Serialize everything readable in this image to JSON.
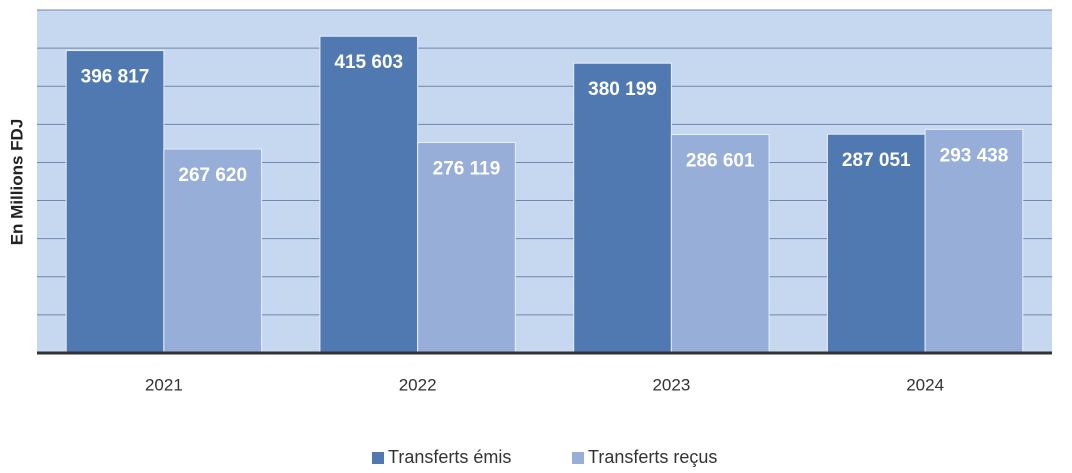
{
  "chart_data": {
    "type": "bar",
    "y_label": "En Millions FDJ",
    "categories": [
      "2021",
      "2022",
      "2023",
      "2024"
    ],
    "series": [
      {
        "name": "Transferts émis",
        "color": "#4f79b0",
        "values": [
          396817,
          415603,
          380199,
          287051
        ],
        "value_labels": [
          "396 817",
          "415 603",
          "380 199",
          "287 051"
        ]
      },
      {
        "name": "Transferts reçus",
        "color": "#97aed8",
        "values": [
          267620,
          276119,
          286601,
          293438
        ],
        "value_labels": [
          "267 620",
          "276 119",
          "286 601",
          "293 438"
        ]
      }
    ],
    "ylim": [
      0,
      450000
    ],
    "yticks": [
      0,
      50000,
      100000,
      150000,
      200000,
      250000,
      300000,
      350000,
      400000,
      450000
    ],
    "grid": true,
    "legend": "bottom"
  }
}
